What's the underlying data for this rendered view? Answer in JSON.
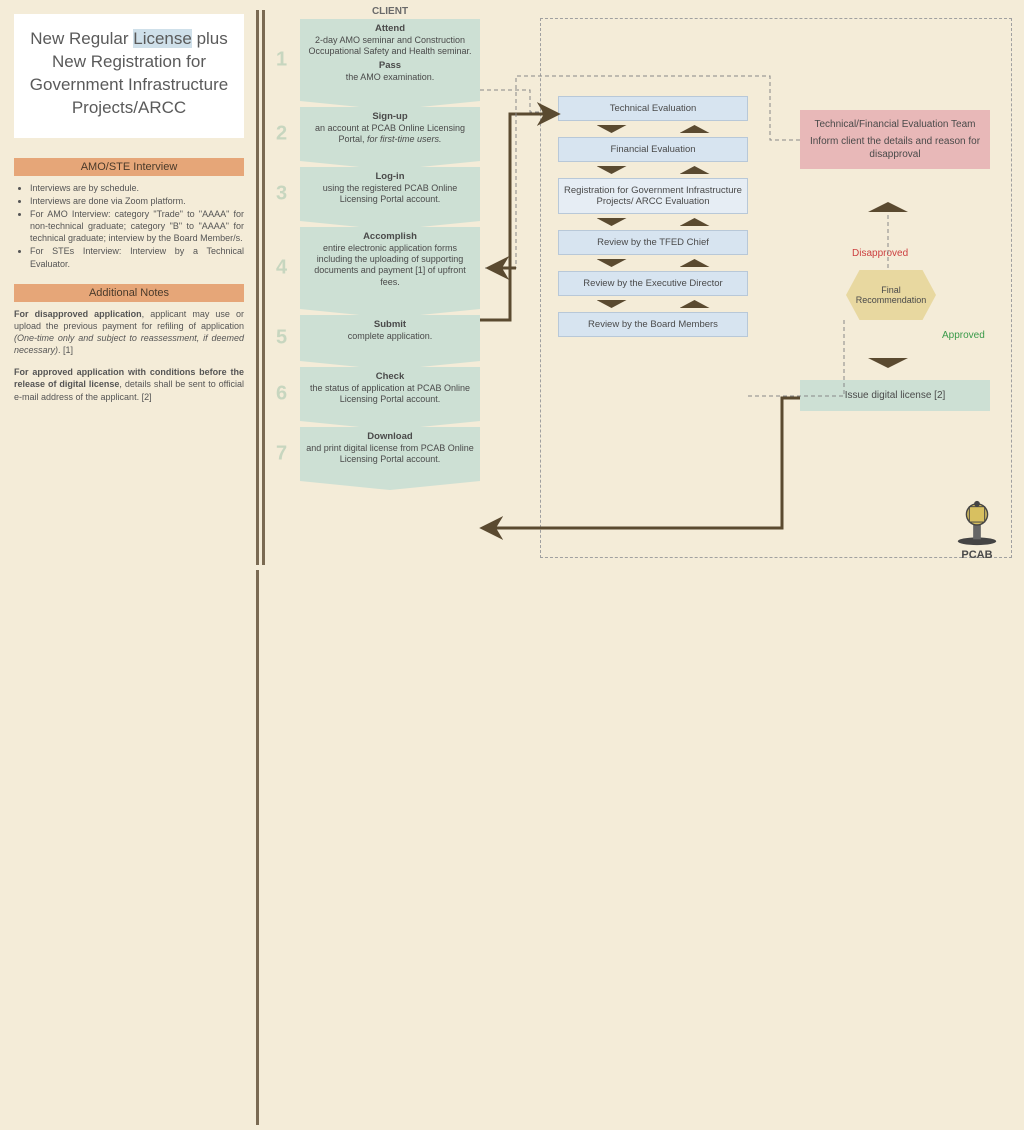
{
  "colors": {
    "page_bg": "#f4ecd8",
    "chevron_fill": "#cde0d4",
    "review_fill": "#d7e4f0",
    "review_light": "#e6edf4",
    "eval_team_fill": "#e8b8b8",
    "final_rec_fill": "#e8d8a0",
    "issue_fill": "#cde0d4",
    "header_orange": "#e6a678",
    "arrow_brown": "#5a4a30",
    "divider_brown": "#7a6a52",
    "disapproved": "#cc4040",
    "approved": "#3a9a4a",
    "step_number": "#c7d6bf"
  },
  "title": {
    "line1": "New Regular ",
    "highlight": "License",
    "line2": " plus New Registration for Government Infrastructure Projects/ARCC"
  },
  "interview_header": "AMO/STE Interview",
  "interview_items": [
    "Interviews are by schedule.",
    "Interviews are done via Zoom platform.",
    "For AMO Interview: category \"Trade\" to \"AAAA\" for non-technical graduate; category \"B\" to \"AAAA\" for technical graduate; interview by the Board Member/s.",
    "For STEs Interview: Interview by a Technical Evaluator."
  ],
  "notes_header": "Additional Notes",
  "notes": [
    {
      "bold": "For disapproved application",
      "rest": ", applicant may use or upload the previous payment for refiling of application ",
      "ital": "(One-time only and subject to reassessment, if deemed necessary)",
      "sup": ". [1]"
    },
    {
      "bold": "For approved application with conditions before the release of digital license",
      "rest": ", details shall be sent to official e-mail address of the applicant. ",
      "ital": "",
      "sup": "[2]"
    }
  ],
  "client_label": "CLIENT",
  "steps": [
    {
      "n": "1",
      "b1": "Attend",
      "t1": "2-day AMO seminar and Construction Occupational Safety and Health seminar.",
      "b2": "Pass",
      "t2": "the AMO examination.",
      "h": "h-tall"
    },
    {
      "n": "2",
      "b1": "Sign-up",
      "t1": "an account at PCAB Online Licensing Portal, ",
      "ital": "for first-time users.",
      "h": "h-med"
    },
    {
      "n": "3",
      "b1": "Log-in",
      "t1": "using the registered PCAB Online Licensing Portal account.",
      "h": "h-med"
    },
    {
      "n": "4",
      "b1": "Accomplish",
      "t1": "entire electronic application forms including the uploading of supporting documents and payment [1] of upfront fees.",
      "h": "h-tall"
    },
    {
      "n": "5",
      "b1": "Submit",
      "t1": "complete application.",
      "h": "h-short"
    },
    {
      "n": "6",
      "b1": "Check",
      "t1": "the status of application at PCAB Online Licensing Portal account.",
      "h": "h-med"
    },
    {
      "n": "7",
      "b1": "Download",
      "t1": "and print digital license from PCAB Online Licensing Portal account.",
      "h": "h-med"
    }
  ],
  "reviews": [
    {
      "label": "Technical Evaluation",
      "light": false
    },
    {
      "label": "Financial Evaluation",
      "light": false
    },
    {
      "label": "Registration for Government Infrastructure Projects/ ARCC Evaluation",
      "light": true
    },
    {
      "label": "Review by the TFED Chief",
      "light": false
    },
    {
      "label": "Review by the Executive Director",
      "light": false
    },
    {
      "label": "Review by the Board Members",
      "light": false
    }
  ],
  "eval_team": {
    "l1": "Technical/Financial Evaluation Team",
    "l2": "Inform client the details and reason for disapproval"
  },
  "final_rec": "Final Recommendation",
  "disapproved_label": "Disapproved",
  "approved_label": "Approved",
  "issue_label": "Issue digital license [2]",
  "pcab_label": "PCAB"
}
